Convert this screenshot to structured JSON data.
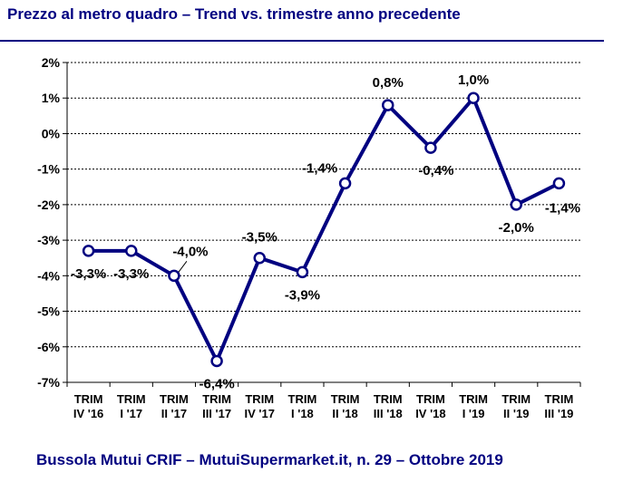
{
  "title": "Prezzo al metro quadro – Trend vs. trimestre anno precedente",
  "footer": "Bussola Mutui CRIF – MutuiSupermarket.it, n. 29 – Ottobre 2019",
  "chart_data": {
    "type": "line",
    "categories": [
      [
        "TRIM",
        "IV '16"
      ],
      [
        "TRIM",
        "I '17"
      ],
      [
        "TRIM",
        "II '17"
      ],
      [
        "TRIM",
        "III '17"
      ],
      [
        "TRIM",
        "IV '17"
      ],
      [
        "TRIM",
        "I '18"
      ],
      [
        "TRIM",
        "II '18"
      ],
      [
        "TRIM",
        "III '18"
      ],
      [
        "TRIM",
        "IV '18"
      ],
      [
        "TRIM",
        "I '19"
      ],
      [
        "TRIM",
        "II '19"
      ],
      [
        "TRIM",
        "III '19"
      ]
    ],
    "values": [
      -3.3,
      -3.3,
      -4.0,
      -6.4,
      -3.5,
      -3.9,
      -1.4,
      0.8,
      -0.4,
      1.0,
      -2.0,
      -1.4
    ],
    "data_labels": [
      "-3,3%",
      "-3,3%",
      "-4,0%",
      "-6,4%",
      "-3,5%",
      "-3,9%",
      "-1,4%",
      "0,8%",
      "-0,4%",
      "1,0%",
      "-2,0%",
      "-1,4%"
    ],
    "ylim": [
      -7,
      2
    ],
    "yticks": [
      2,
      1,
      0,
      -1,
      -2,
      -3,
      -4,
      -5,
      -6,
      -7
    ],
    "ytick_labels": [
      "2%",
      "1%",
      "0%",
      "-1%",
      "-2%",
      "-3%",
      "-4%",
      "-5%",
      "-6%",
      "-7%"
    ],
    "grid": true,
    "line_color": "#000080",
    "marker_fill": "#ffffff"
  }
}
